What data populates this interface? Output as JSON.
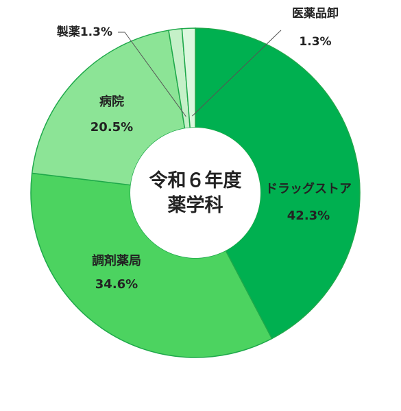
{
  "chart_data": {
    "type": "pie",
    "variant": "donut",
    "center_label": [
      "令和６年度",
      "薬学科"
    ],
    "slices": [
      {
        "name": "ドラッグストア",
        "value": 42.3,
        "pct_label": "42.3%",
        "color": "#00b050"
      },
      {
        "name": "調剤薬局",
        "value": 34.6,
        "pct_label": "34.6%",
        "color": "#4cd360"
      },
      {
        "name": "病院",
        "value": 20.5,
        "pct_label": "20.5%",
        "color": "#8ce496"
      },
      {
        "name": "製薬",
        "value": 1.3,
        "pct_label": "1.3%",
        "color": "#c5f0c8"
      },
      {
        "name": "医薬品卸",
        "value": 1.3,
        "pct_label": "1.3%",
        "color": "#dcf7de"
      }
    ],
    "slice_border_color": "#1ea84a",
    "label_text_color": "#222222"
  }
}
